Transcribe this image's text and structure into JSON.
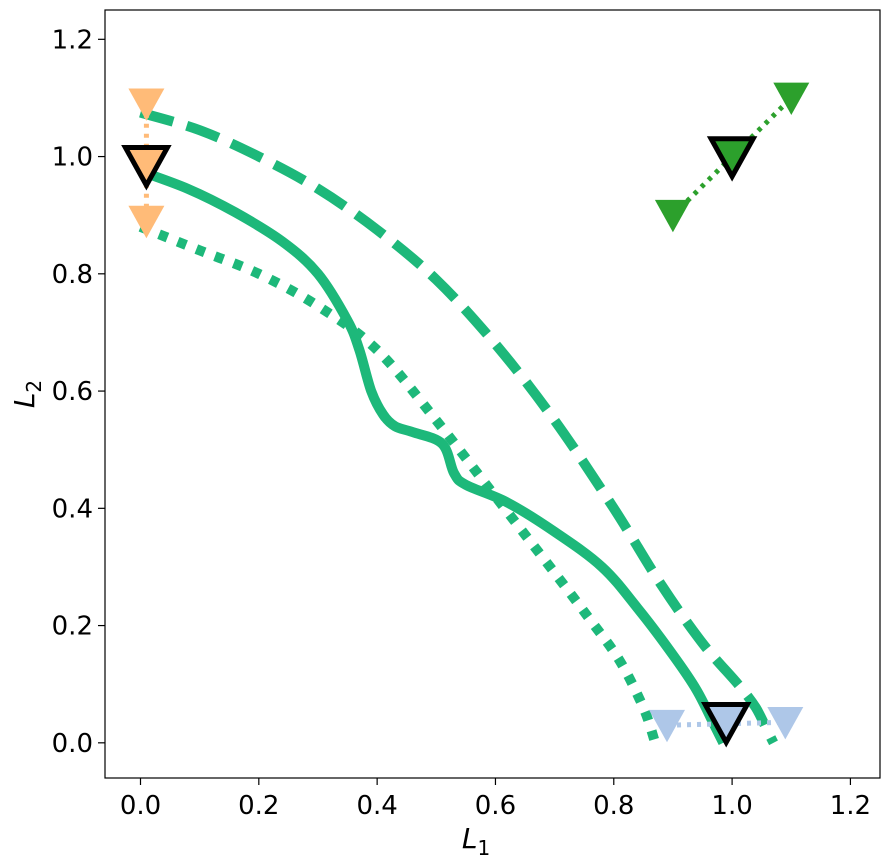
{
  "chart_data": {
    "type": "line",
    "xlabel": "L",
    "xlabel_sub": "1",
    "ylabel": "L",
    "ylabel_sub": "2",
    "xlim": [
      -0.06,
      1.25
    ],
    "ylim": [
      -0.06,
      1.25
    ],
    "xticks": [
      "0.0",
      "0.2",
      "0.4",
      "0.6",
      "0.8",
      "1.0",
      "1.2"
    ],
    "yticks": [
      "0.0",
      "0.2",
      "0.4",
      "0.6",
      "0.8",
      "1.0",
      "1.2"
    ],
    "grid": false,
    "colors": {
      "front": "#1db87a",
      "orange": "#ffbb78",
      "green": "#2ca02c",
      "lightblue": "#aec7e8",
      "outline": "#000000"
    },
    "curves": [
      {
        "style": "solid",
        "points": [
          [
            0.0,
            0.975
          ],
          [
            0.08,
            0.945
          ],
          [
            0.16,
            0.905
          ],
          [
            0.24,
            0.855
          ],
          [
            0.3,
            0.8
          ],
          [
            0.35,
            0.72
          ],
          [
            0.37,
            0.67
          ],
          [
            0.39,
            0.6
          ],
          [
            0.41,
            0.56
          ],
          [
            0.43,
            0.54
          ],
          [
            0.46,
            0.53
          ],
          [
            0.51,
            0.51
          ],
          [
            0.53,
            0.46
          ],
          [
            0.55,
            0.44
          ],
          [
            0.62,
            0.41
          ],
          [
            0.7,
            0.36
          ],
          [
            0.78,
            0.3
          ],
          [
            0.84,
            0.23
          ],
          [
            0.9,
            0.15
          ],
          [
            0.94,
            0.09
          ],
          [
            0.97,
            0.03
          ],
          [
            0.985,
            0.0
          ]
        ]
      },
      {
        "style": "dashed",
        "points": [
          [
            0.0,
            1.075
          ],
          [
            0.1,
            1.045
          ],
          [
            0.2,
            1.0
          ],
          [
            0.3,
            0.945
          ],
          [
            0.4,
            0.875
          ],
          [
            0.5,
            0.79
          ],
          [
            0.6,
            0.68
          ],
          [
            0.7,
            0.55
          ],
          [
            0.8,
            0.4
          ],
          [
            0.88,
            0.27
          ],
          [
            0.95,
            0.17
          ],
          [
            1.01,
            0.1
          ],
          [
            1.04,
            0.06
          ],
          [
            1.06,
            0.02
          ],
          [
            1.07,
            0.0
          ]
        ]
      },
      {
        "style": "dotted",
        "points": [
          [
            0.0,
            0.88
          ],
          [
            0.1,
            0.84
          ],
          [
            0.2,
            0.8
          ],
          [
            0.3,
            0.745
          ],
          [
            0.4,
            0.67
          ],
          [
            0.5,
            0.55
          ],
          [
            0.6,
            0.42
          ],
          [
            0.7,
            0.29
          ],
          [
            0.76,
            0.21
          ],
          [
            0.81,
            0.14
          ],
          [
            0.85,
            0.06
          ],
          [
            0.87,
            0.0
          ]
        ]
      }
    ],
    "marker_groups": [
      {
        "color": "orange",
        "center": [
          0.01,
          0.985
        ],
        "satellites": [
          [
            0.01,
            1.09
          ],
          [
            0.01,
            0.89
          ]
        ]
      },
      {
        "color": "lightblue",
        "center": [
          0.99,
          0.035
        ],
        "satellites": [
          [
            0.89,
            0.03
          ],
          [
            1.09,
            0.035
          ]
        ]
      },
      {
        "color": "green",
        "center": [
          1.0,
          1.0
        ],
        "satellites": [
          [
            0.9,
            0.9
          ],
          [
            1.1,
            1.1
          ]
        ]
      }
    ]
  }
}
